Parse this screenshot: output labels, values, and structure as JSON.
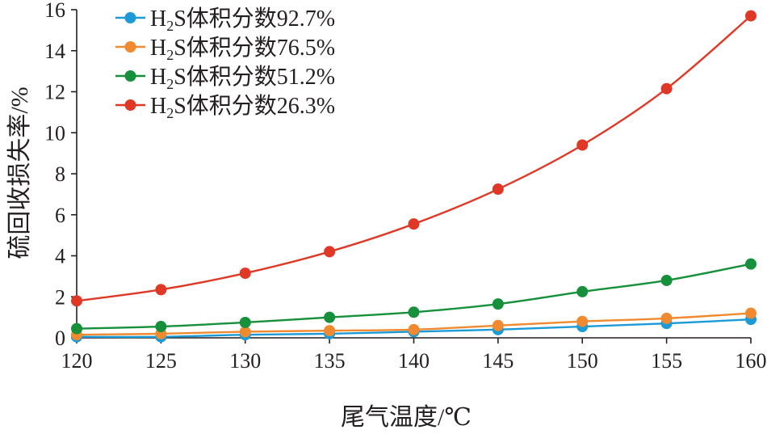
{
  "chart_data": {
    "type": "line",
    "title": "",
    "xlabel": "尾气温度/℃",
    "ylabel": "硫回收损失率/%",
    "xlim": [
      120,
      160
    ],
    "ylim": [
      0,
      16
    ],
    "x": [
      120,
      125,
      130,
      135,
      140,
      145,
      150,
      155,
      160
    ],
    "xticks": [
      "120",
      "125",
      "130",
      "135",
      "140",
      "145",
      "150",
      "155",
      "160"
    ],
    "yticks": [
      "0",
      "2",
      "4",
      "6",
      "8",
      "10",
      "12",
      "14",
      "16"
    ],
    "grid": false,
    "legend_position": "top-left",
    "series": [
      {
        "name": "H2S体积分数92.7%",
        "name_parts": [
          "H",
          "2",
          "S体积分数92.7%"
        ],
        "color": "#1c9ad6",
        "values": [
          0.05,
          0.05,
          0.15,
          0.2,
          0.3,
          0.4,
          0.55,
          0.7,
          0.9
        ]
      },
      {
        "name": "H2S体积分数76.5%",
        "name_parts": [
          "H",
          "2",
          "S体积分数76.5%"
        ],
        "color": "#f08a30",
        "values": [
          0.15,
          0.2,
          0.3,
          0.35,
          0.4,
          0.6,
          0.8,
          0.95,
          1.2
        ]
      },
      {
        "name": "H2S体积分数51.2%",
        "name_parts": [
          "H",
          "2",
          "S体积分数51.2%"
        ],
        "color": "#16903b",
        "values": [
          0.45,
          0.55,
          0.75,
          1.0,
          1.25,
          1.65,
          2.25,
          2.8,
          3.6
        ]
      },
      {
        "name": "H2S体积分数26.3%",
        "name_parts": [
          "H",
          "2",
          "S体积分数26.3%"
        ],
        "color": "#e03826",
        "values": [
          1.8,
          2.35,
          3.15,
          4.2,
          5.55,
          7.25,
          9.4,
          12.15,
          15.7
        ]
      }
    ]
  }
}
